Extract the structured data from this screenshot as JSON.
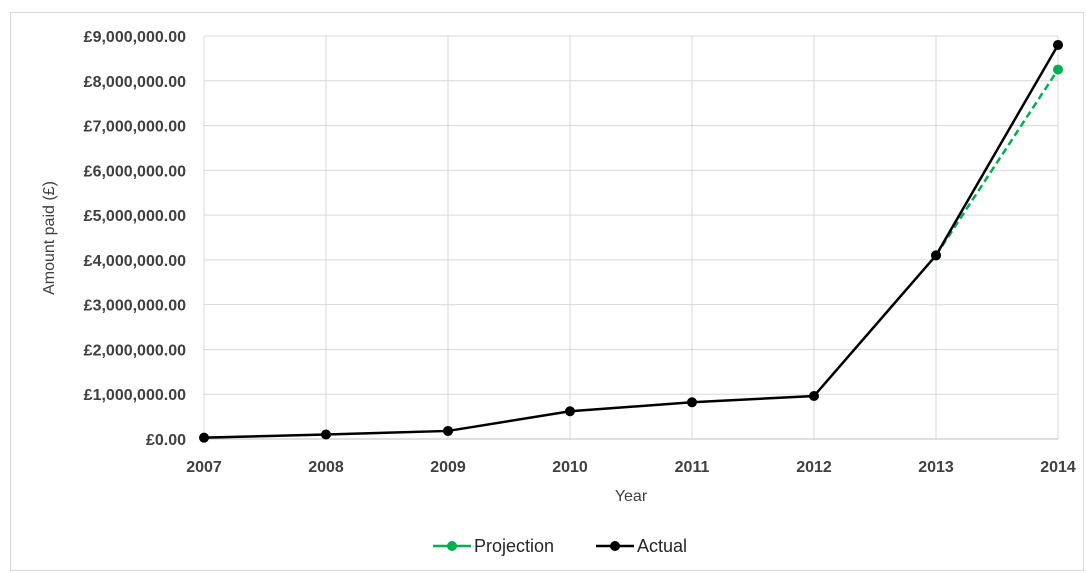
{
  "chart_data": {
    "type": "line",
    "xlabel": "Year",
    "ylabel": "Amount paid (£)",
    "x": [
      "2007",
      "2008",
      "2009",
      "2010",
      "2011",
      "2012",
      "2013",
      "2014"
    ],
    "ylim": [
      0,
      9000000
    ],
    "y_tick_values": [
      0,
      1000000,
      2000000,
      3000000,
      4000000,
      5000000,
      6000000,
      7000000,
      8000000,
      9000000
    ],
    "y_tick_labels": [
      "£0.00",
      "£1,000,000.00",
      "£2,000,000.00",
      "£3,000,000.00",
      "£4,000,000.00",
      "£5,000,000.00",
      "£6,000,000.00",
      "£7,000,000.00",
      "£8,000,000.00",
      "£9,000,000.00"
    ],
    "grid": true,
    "legend_position": "bottom",
    "series": [
      {
        "name": "Projection",
        "color": "#00b050",
        "style": "dashed",
        "values": [
          null,
          null,
          null,
          null,
          null,
          null,
          4100000,
          8250000
        ]
      },
      {
        "name": "Actual",
        "color": "#000000",
        "style": "solid",
        "values": [
          30000,
          100000,
          180000,
          620000,
          820000,
          960000,
          4100000,
          8800000
        ]
      }
    ]
  }
}
